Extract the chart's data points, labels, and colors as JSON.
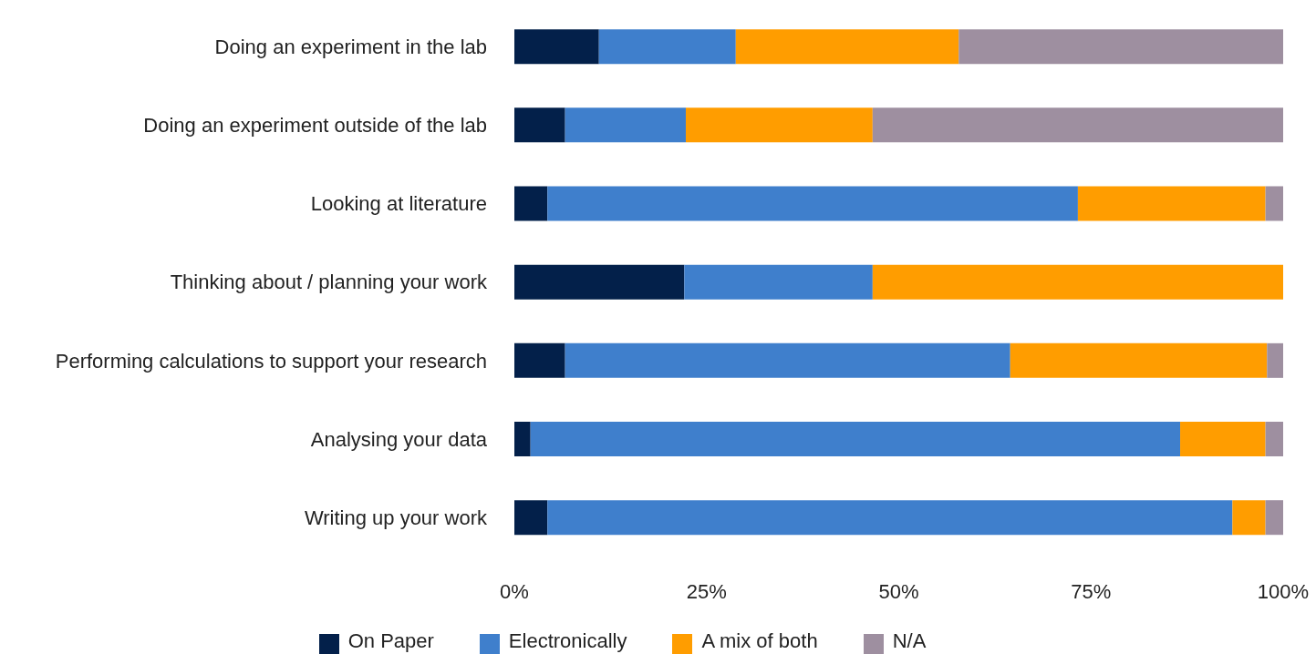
{
  "chart_data": {
    "type": "bar",
    "orientation": "horizontal",
    "stacked": true,
    "categories": [
      "Doing an experiment in the lab",
      "Doing an experiment outside of the lab",
      "Looking at literature",
      "Thinking about / planning your work",
      "Performing calculations to support your research",
      "Analysing your data",
      "Writing up your work"
    ],
    "series": [
      {
        "name": "On Paper",
        "color": "#03204a",
        "values": [
          11,
          6.6,
          4.3,
          22.1,
          6.6,
          2.1,
          4.3
        ]
      },
      {
        "name": "Electronically",
        "color": "#3f7fcc",
        "values": [
          17.8,
          15.7,
          69,
          24.5,
          57.9,
          84.5,
          89.1
        ]
      },
      {
        "name": "A mix of both",
        "color": "#ff9d00",
        "values": [
          29,
          24.3,
          24.4,
          53.4,
          33.4,
          11.1,
          4.3
        ]
      },
      {
        "name": "N/A",
        "color": "#9e8fa0",
        "values": [
          42.2,
          53.4,
          2.3,
          0,
          2.1,
          2.3,
          2.3
        ]
      }
    ],
    "xlim": [
      0,
      100
    ],
    "xticks": [
      {
        "value": 0,
        "label": "0%"
      },
      {
        "value": 25,
        "label": "25%"
      },
      {
        "value": 50,
        "label": "50%"
      },
      {
        "value": 75,
        "label": "75%"
      },
      {
        "value": 100,
        "label": "100%"
      }
    ],
    "grid": false,
    "legend": "bottom"
  }
}
